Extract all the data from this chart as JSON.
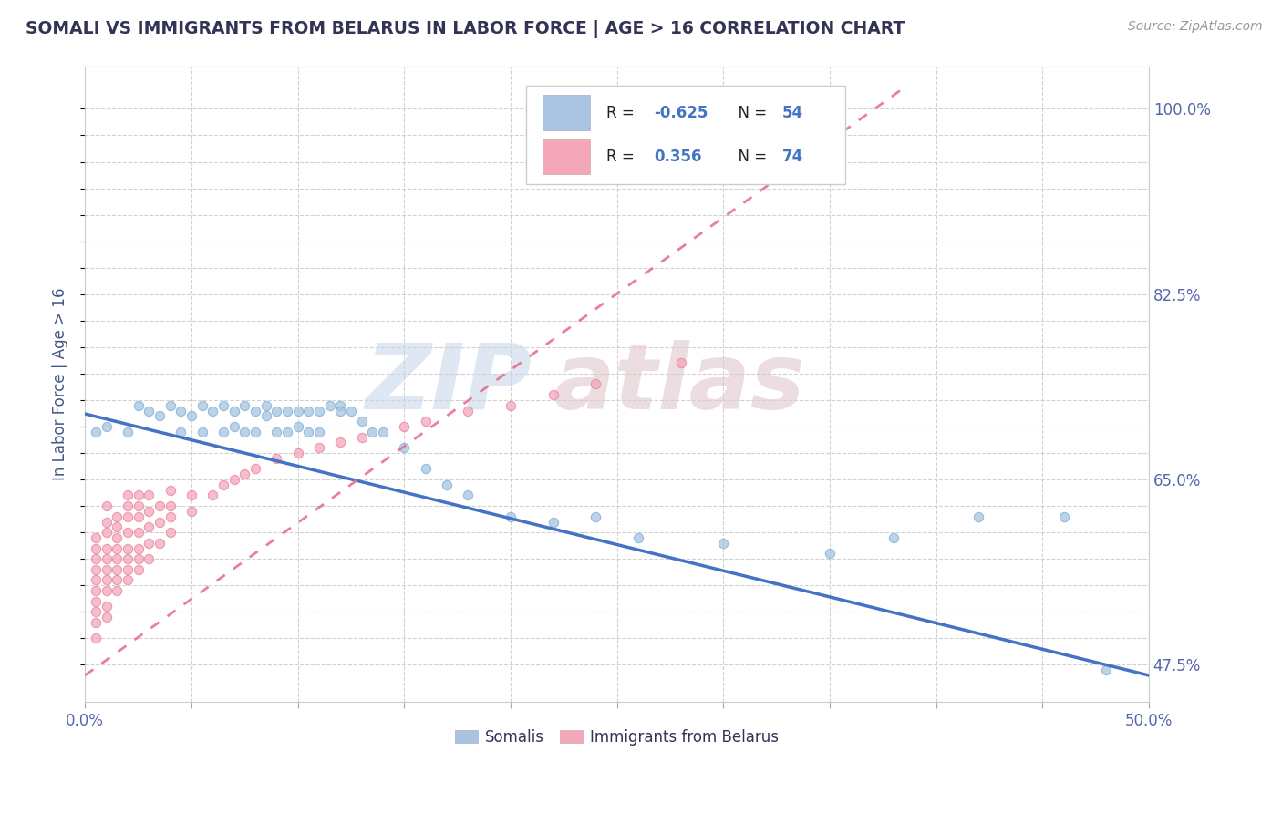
{
  "title": "SOMALI VS IMMIGRANTS FROM BELARUS IN LABOR FORCE | AGE > 16 CORRELATION CHART",
  "source": "Source: ZipAtlas.com",
  "ylabel": "In Labor Force | Age > 16",
  "xlim": [
    0.0,
    0.5
  ],
  "ylim": [
    0.44,
    1.04
  ],
  "ytick_positions": [
    0.475,
    0.5,
    0.525,
    0.55,
    0.575,
    0.6,
    0.625,
    0.65,
    0.675,
    0.7,
    0.725,
    0.75,
    0.775,
    0.8,
    0.825,
    0.85,
    0.875,
    0.9,
    0.925,
    0.95,
    0.975,
    1.0
  ],
  "ytick_labels": [
    "47.5%",
    "",
    "",
    "",
    "",
    "",
    "",
    "65.0%",
    "",
    "",
    "",
    "",
    "",
    "",
    "82.5%",
    "",
    "",
    "",
    "",
    "",
    "",
    "100.0%"
  ],
  "somali_color": "#a8c4e0",
  "somali_edge_color": "#7aaed6",
  "belarus_color": "#f4a7b9",
  "belarus_edge_color": "#e880a0",
  "somali_line_color": "#4472c4",
  "belarus_line_color": "#e87090",
  "background_color": "#ffffff",
  "grid_color": "#cccccc",
  "watermark_zip_color": "#c8d8ea",
  "watermark_atlas_color": "#e0c8cc",
  "somali_x": [
    0.005,
    0.01,
    0.02,
    0.025,
    0.03,
    0.035,
    0.04,
    0.045,
    0.045,
    0.05,
    0.055,
    0.055,
    0.06,
    0.065,
    0.065,
    0.07,
    0.07,
    0.075,
    0.075,
    0.08,
    0.08,
    0.085,
    0.085,
    0.09,
    0.09,
    0.095,
    0.095,
    0.1,
    0.1,
    0.105,
    0.105,
    0.11,
    0.11,
    0.115,
    0.12,
    0.12,
    0.125,
    0.13,
    0.135,
    0.14,
    0.15,
    0.16,
    0.17,
    0.18,
    0.2,
    0.22,
    0.24,
    0.26,
    0.3,
    0.35,
    0.38,
    0.42,
    0.46,
    0.48
  ],
  "somali_y": [
    0.695,
    0.7,
    0.695,
    0.72,
    0.715,
    0.71,
    0.72,
    0.715,
    0.695,
    0.71,
    0.72,
    0.695,
    0.715,
    0.72,
    0.695,
    0.715,
    0.7,
    0.72,
    0.695,
    0.715,
    0.695,
    0.72,
    0.71,
    0.715,
    0.695,
    0.715,
    0.695,
    0.715,
    0.7,
    0.715,
    0.695,
    0.715,
    0.695,
    0.72,
    0.72,
    0.715,
    0.715,
    0.705,
    0.695,
    0.695,
    0.68,
    0.66,
    0.645,
    0.635,
    0.615,
    0.61,
    0.615,
    0.595,
    0.59,
    0.58,
    0.595,
    0.615,
    0.615,
    0.47
  ],
  "belarus_x": [
    0.005,
    0.005,
    0.005,
    0.005,
    0.005,
    0.005,
    0.005,
    0.005,
    0.005,
    0.005,
    0.01,
    0.01,
    0.01,
    0.01,
    0.01,
    0.01,
    0.01,
    0.01,
    0.01,
    0.01,
    0.015,
    0.015,
    0.015,
    0.015,
    0.015,
    0.015,
    0.015,
    0.015,
    0.02,
    0.02,
    0.02,
    0.02,
    0.02,
    0.02,
    0.02,
    0.02,
    0.025,
    0.025,
    0.025,
    0.025,
    0.025,
    0.025,
    0.025,
    0.03,
    0.03,
    0.03,
    0.03,
    0.03,
    0.035,
    0.035,
    0.035,
    0.04,
    0.04,
    0.04,
    0.04,
    0.05,
    0.05,
    0.06,
    0.065,
    0.07,
    0.075,
    0.08,
    0.09,
    0.1,
    0.11,
    0.12,
    0.13,
    0.15,
    0.16,
    0.18,
    0.2,
    0.22,
    0.24,
    0.28
  ],
  "belarus_y": [
    0.5,
    0.515,
    0.525,
    0.535,
    0.545,
    0.555,
    0.565,
    0.575,
    0.585,
    0.595,
    0.52,
    0.53,
    0.545,
    0.555,
    0.565,
    0.575,
    0.585,
    0.6,
    0.61,
    0.625,
    0.545,
    0.555,
    0.565,
    0.575,
    0.585,
    0.595,
    0.605,
    0.615,
    0.555,
    0.565,
    0.575,
    0.585,
    0.6,
    0.615,
    0.625,
    0.635,
    0.565,
    0.575,
    0.585,
    0.6,
    0.615,
    0.625,
    0.635,
    0.575,
    0.59,
    0.605,
    0.62,
    0.635,
    0.59,
    0.61,
    0.625,
    0.6,
    0.615,
    0.625,
    0.64,
    0.62,
    0.635,
    0.635,
    0.645,
    0.65,
    0.655,
    0.66,
    0.67,
    0.675,
    0.68,
    0.685,
    0.69,
    0.7,
    0.705,
    0.715,
    0.72,
    0.73,
    0.74,
    0.76
  ]
}
